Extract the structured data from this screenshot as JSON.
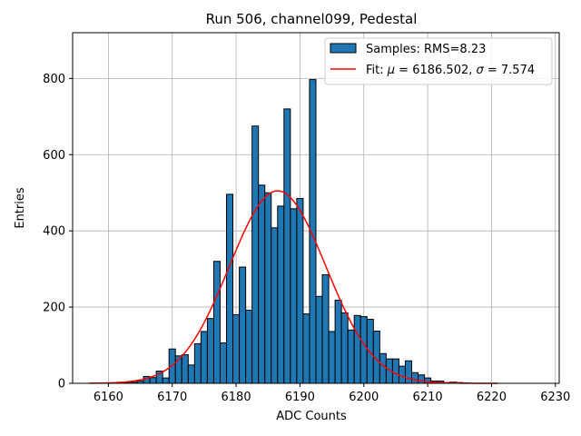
{
  "chart_data": {
    "type": "bar",
    "title": "Run 506, channel099, Pedestal",
    "xlabel": "ADC Counts",
    "ylabel": "Entries",
    "xlim": [
      6154.4,
      6230.6
    ],
    "ylim": [
      0,
      920
    ],
    "xticks": [
      6160,
      6170,
      6180,
      6190,
      6200,
      6210,
      6220,
      6230
    ],
    "yticks": [
      0,
      200,
      400,
      600,
      800
    ],
    "grid": true,
    "legend_position": "top-right",
    "bin_width": 1,
    "bar_color": "#1f77b4",
    "fit_color": "#ff0000",
    "series": [
      {
        "name": "Samples: RMS=8.23",
        "type": "histogram",
        "bins": [
          {
            "x": 6162,
            "y": 1
          },
          {
            "x": 6163,
            "y": 2
          },
          {
            "x": 6164,
            "y": 3
          },
          {
            "x": 6165,
            "y": 6
          },
          {
            "x": 6166,
            "y": 18
          },
          {
            "x": 6167,
            "y": 15
          },
          {
            "x": 6168,
            "y": 32
          },
          {
            "x": 6169,
            "y": 14
          },
          {
            "x": 6170,
            "y": 90
          },
          {
            "x": 6171,
            "y": 72
          },
          {
            "x": 6172,
            "y": 75
          },
          {
            "x": 6173,
            "y": 48
          },
          {
            "x": 6174,
            "y": 104
          },
          {
            "x": 6175,
            "y": 136
          },
          {
            "x": 6176,
            "y": 170
          },
          {
            "x": 6177,
            "y": 320
          },
          {
            "x": 6178,
            "y": 106
          },
          {
            "x": 6179,
            "y": 496
          },
          {
            "x": 6180,
            "y": 180
          },
          {
            "x": 6181,
            "y": 305
          },
          {
            "x": 6182,
            "y": 192
          },
          {
            "x": 6183,
            "y": 675
          },
          {
            "x": 6184,
            "y": 520
          },
          {
            "x": 6185,
            "y": 500
          },
          {
            "x": 6186,
            "y": 408
          },
          {
            "x": 6187,
            "y": 465
          },
          {
            "x": 6188,
            "y": 720
          },
          {
            "x": 6189,
            "y": 458
          },
          {
            "x": 6190,
            "y": 485
          },
          {
            "x": 6191,
            "y": 182
          },
          {
            "x": 6192,
            "y": 797
          },
          {
            "x": 6193,
            "y": 228
          },
          {
            "x": 6194,
            "y": 285
          },
          {
            "x": 6195,
            "y": 136
          },
          {
            "x": 6196,
            "y": 218
          },
          {
            "x": 6197,
            "y": 185
          },
          {
            "x": 6198,
            "y": 140
          },
          {
            "x": 6199,
            "y": 178
          },
          {
            "x": 6200,
            "y": 175
          },
          {
            "x": 6201,
            "y": 168
          },
          {
            "x": 6202,
            "y": 137
          },
          {
            "x": 6203,
            "y": 78
          },
          {
            "x": 6204,
            "y": 64
          },
          {
            "x": 6205,
            "y": 64
          },
          {
            "x": 6206,
            "y": 45
          },
          {
            "x": 6207,
            "y": 59
          },
          {
            "x": 6208,
            "y": 28
          },
          {
            "x": 6209,
            "y": 22
          },
          {
            "x": 6210,
            "y": 14
          },
          {
            "x": 6211,
            "y": 6
          },
          {
            "x": 6212,
            "y": 6
          },
          {
            "x": 6213,
            "y": 2
          },
          {
            "x": 6214,
            "y": 3
          },
          {
            "x": 6215,
            "y": 2
          },
          {
            "x": 6216,
            "y": 1
          }
        ]
      },
      {
        "name": "Fit: μ = 6186.502, σ = 7.574",
        "type": "line",
        "model": "gaussian",
        "mu": 6186.502,
        "sigma": 7.574,
        "amplitude": 505,
        "x_range": [
          6157,
          6221
        ]
      }
    ],
    "legend": [
      {
        "label_prefix": "Samples: RMS=8.23",
        "kind": "patch"
      },
      {
        "label_prefix": "Fit: ",
        "mu_symbol": "μ",
        "mu_text": " = 6186.502, ",
        "sigma_symbol": "σ",
        "sigma_text": " = 7.574",
        "kind": "line"
      }
    ]
  }
}
